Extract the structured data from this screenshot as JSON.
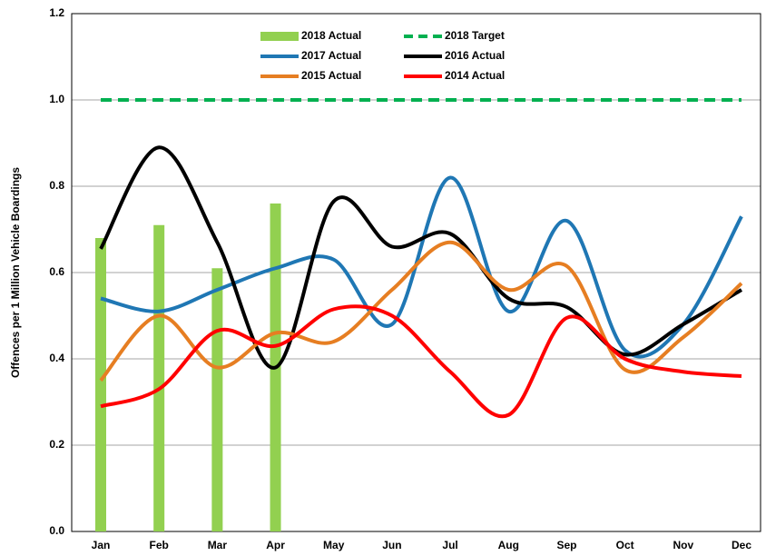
{
  "chart_data": {
    "type": "line",
    "y_label": "Offences per 1 Million Vehicle Boardings",
    "categories": [
      "Jan",
      "Feb",
      "Mar",
      "Apr",
      "May",
      "Jun",
      "Jul",
      "Aug",
      "Sep",
      "Oct",
      "Nov",
      "Dec"
    ],
    "ylim": [
      0,
      1.2
    ],
    "yticks": [
      {
        "value": 0,
        "label": "0.0"
      },
      0.2,
      0.4,
      0.6,
      0.8,
      {
        "value": 1,
        "label": "1.0"
      },
      1.2
    ],
    "grid": true,
    "legend": "top-center",
    "series": [
      {
        "name": "2018 Actual",
        "kind": "bar",
        "color": "#92d050",
        "values": [
          0.68,
          0.71,
          0.61,
          0.76,
          null,
          null,
          null,
          null,
          null,
          null,
          null,
          null
        ]
      },
      {
        "name": "2018 Target",
        "kind": "line",
        "dashed": true,
        "color": "#00b050",
        "values": [
          1,
          1,
          1,
          1,
          1,
          1,
          1,
          1,
          1,
          1,
          1,
          1
        ]
      },
      {
        "name": "2017 Actual",
        "kind": "line",
        "color": "#1f77b4",
        "values": [
          0.54,
          0.51,
          0.56,
          0.61,
          0.63,
          0.48,
          0.82,
          0.51,
          0.72,
          0.42,
          0.48,
          0.73
        ]
      },
      {
        "name": "2016 Actual",
        "kind": "line",
        "color": "#000000",
        "values": [
          0.655,
          0.89,
          0.67,
          0.38,
          0.765,
          0.66,
          0.69,
          0.54,
          0.52,
          0.41,
          0.48,
          0.56
        ]
      },
      {
        "name": "2015 Actual",
        "kind": "line",
        "color": "#e67e22",
        "values": [
          0.35,
          0.5,
          0.38,
          0.46,
          0.44,
          0.56,
          0.67,
          0.56,
          0.615,
          0.375,
          0.45,
          0.575
        ]
      },
      {
        "name": "2014 Actual",
        "kind": "line",
        "color": "#ff0000",
        "values": [
          0.29,
          0.33,
          0.465,
          0.43,
          0.515,
          0.5,
          0.37,
          0.27,
          0.495,
          0.4,
          0.37,
          0.36
        ]
      }
    ]
  }
}
